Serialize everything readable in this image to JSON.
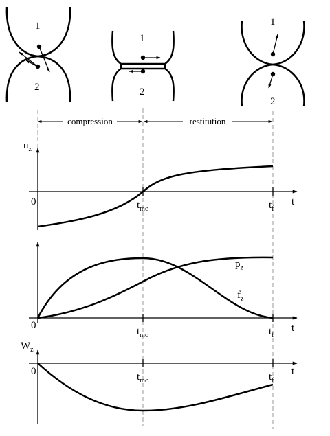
{
  "stages": {
    "body1": "1",
    "body2": "2"
  },
  "phases": {
    "compression": "compression",
    "restitution": "restitution"
  },
  "axes": {
    "t": "t",
    "zero": "0",
    "t_mc": "t",
    "t_mc_sub": "mc",
    "t_f": "t",
    "t_f_sub": "f"
  },
  "plots": {
    "uz_main": "u",
    "uz_sub": "z",
    "pz_main": "p",
    "pz_sub": "z",
    "fz_main": "f",
    "fz_sub": "z",
    "wz_main": "W",
    "wz_sub": "z"
  }
}
